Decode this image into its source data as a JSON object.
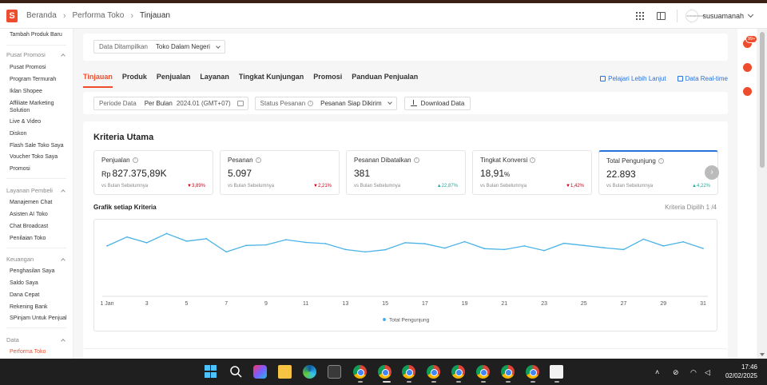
{
  "header": {
    "logo": "S",
    "breadcrumb": [
      "Beranda",
      "Performa Toko",
      "Tinjauan"
    ],
    "username": "susuamanah",
    "avatar_text": "susuamanah"
  },
  "sidebar": {
    "top_item": "Tambah Produk Baru",
    "groups": [
      {
        "title": "Pusat Promosi",
        "items": [
          "Pusat Promosi",
          "Program Termurah",
          "Iklan Shopee",
          "Affiliate Marketing Solution",
          "Live & Video",
          "Diskon",
          "Flash Sale Toko Saya",
          "Voucher Toko Saya",
          "Promosi"
        ]
      },
      {
        "title": "Layanan Pembeli",
        "items": [
          "Manajemen Chat",
          "Asisten AI Toko",
          "Chat Broadcast",
          "Penilaian Toko"
        ]
      },
      {
        "title": "Keuangan",
        "items": [
          "Penghasilan Saya",
          "Saldo Saya",
          "Dana Cepat",
          "Rekening Bank",
          "SPinjam Untuk Penjual"
        ]
      },
      {
        "title": "Data",
        "items": [
          "Performa Toko"
        ]
      }
    ]
  },
  "display_selector": {
    "label": "Data Ditampilkan",
    "value": "Toko Dalam Negeri"
  },
  "tabs": [
    "Tinjauan",
    "Produk",
    "Penjualan",
    "Layanan",
    "Tingkat Kunjungan",
    "Promosi",
    "Panduan Penjualan"
  ],
  "tab_links": {
    "learn": "Pelajari Lebih Lanjut",
    "realtime": "Data Real-time"
  },
  "filters": {
    "period_label": "Periode Data",
    "period_type": "Per Bulan",
    "period_value": "2024.01 (GMT+07)",
    "status_label": "Status Pesanan",
    "status_value": "Pesanan Siap Dikirim",
    "download": "Download Data"
  },
  "kriteria": {
    "title": "Kriteria Utama",
    "metrics": [
      {
        "name": "Penjualan",
        "currency": "Rp",
        "value": "827.375,89K",
        "compare": "vs Bulan Sebelumnya",
        "change": "3,89%",
        "dir": "down"
      },
      {
        "name": "Pesanan",
        "currency": "",
        "value": "5.097",
        "compare": "vs Bulan Sebelumnya",
        "change": "2,21%",
        "dir": "down"
      },
      {
        "name": "Pesanan Dibatalkan",
        "currency": "",
        "value": "381",
        "compare": "vs Bulan Sebelumnya",
        "change": "22,87%",
        "dir": "up"
      },
      {
        "name": "Tingkat Konversi",
        "currency": "",
        "value": "18,91",
        "unit": "%",
        "compare": "vs Bulan Sebelumnya",
        "change": "1,42%",
        "dir": "down"
      },
      {
        "name": "Total Pengunjung",
        "currency": "",
        "value": "22.893",
        "compare": "vs Bulan Sebelumnya",
        "change": "4,22%",
        "dir": "up"
      }
    ],
    "chart_title": "Grafik setiap Kriteria",
    "chart_selected": "Kriteria Dipilih 1 /4"
  },
  "chart_data": {
    "type": "line",
    "x": [
      1,
      2,
      3,
      4,
      5,
      6,
      7,
      8,
      9,
      10,
      11,
      12,
      13,
      14,
      15,
      16,
      17,
      18,
      19,
      20,
      21,
      22,
      23,
      24,
      25,
      26,
      27,
      28,
      29,
      30,
      31
    ],
    "x_tick_labels": [
      "1 Jan",
      "3",
      "5",
      "7",
      "9",
      "11",
      "13",
      "15",
      "17",
      "19",
      "21",
      "23",
      "25",
      "27",
      "29",
      "31"
    ],
    "series": [
      {
        "name": "Total Pengunjung",
        "color": "#4ab3e6",
        "values": [
          745,
          828,
          775,
          860,
          790,
          812,
          690,
          750,
          755,
          803,
          778,
          767,
          712,
          690,
          710,
          775,
          765,
          725,
          785,
          720,
          712,
          745,
          702,
          770,
          750,
          728,
          712,
          808,
          745,
          783,
          722
        ]
      }
    ],
    "grid": false,
    "legend": "bottom-center"
  },
  "taskbar": {
    "time": "17:46",
    "date": "02/02/2025"
  },
  "colors": {
    "accent": "#ee4d2d",
    "link": "#2673dd",
    "line": "#4ab3e6",
    "down": "#d0011b",
    "up": "#26aa99"
  }
}
